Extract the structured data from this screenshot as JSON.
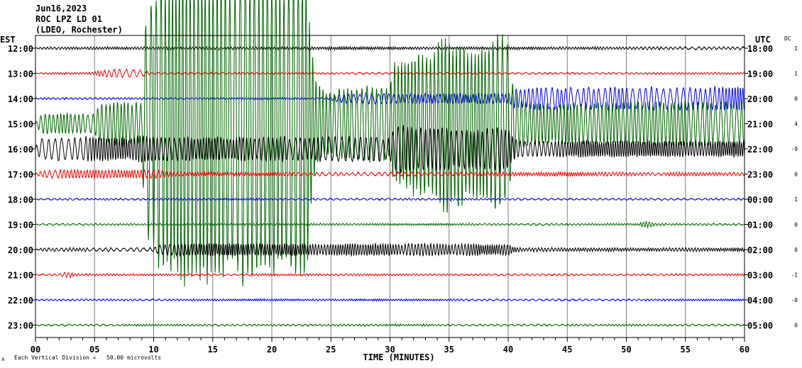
{
  "header": {
    "date": "Jun16,2023",
    "station": "ROC LPZ LD 01",
    "network": "(LDEO, Rochester)"
  },
  "chart_data": {
    "type": "line",
    "title": "Jun16,2023 ROC LPZ LD 01 (LDEO, Rochester)",
    "xlabel": "TIME (MINUTES)",
    "left_axis_title": "EST",
    "right_axis_title": "UTC",
    "dc_title": "DC",
    "xlim": [
      0,
      60
    ],
    "x_ticks": [
      "00",
      "05",
      "10",
      "15",
      "20",
      "25",
      "30",
      "35",
      "40",
      "45",
      "50",
      "55",
      "60"
    ],
    "grid": "vertical every 5 minutes",
    "scale_note": "Each Vertical Division =   50.00 microvolts",
    "scale_mark": "ʌ",
    "colors": {
      "black": "#000000",
      "red": "#ff0000",
      "blue": "#0000ff",
      "green": "#006400",
      "grid": "#808080"
    },
    "rows": [
      {
        "est": "12:00",
        "utc": "18:00",
        "dc": "1",
        "color": "#000000",
        "envelope_uV": [
          [
            0,
            60,
            3
          ]
        ]
      },
      {
        "est": "13:00",
        "utc": "19:00",
        "dc": "1",
        "color": "#ff0000",
        "envelope_uV": [
          [
            0,
            5,
            2
          ],
          [
            5,
            9,
            10
          ],
          [
            9,
            60,
            2
          ]
        ]
      },
      {
        "est": "14:00",
        "utc": "20:00",
        "dc": "0",
        "color": "#0000ff",
        "envelope_uV": [
          [
            0,
            25,
            2
          ],
          [
            25,
            40,
            12
          ],
          [
            40,
            60,
            28
          ]
        ]
      },
      {
        "est": "15:00",
        "utc": "21:00",
        "dc": "4",
        "color": "#006400",
        "envelope_uV": [
          [
            0,
            5,
            25
          ],
          [
            5,
            9,
            55
          ],
          [
            9,
            23,
            380
          ],
          [
            23,
            30,
            90
          ],
          [
            30,
            34,
            180
          ],
          [
            34,
            40,
            220
          ],
          [
            40,
            60,
            55
          ]
        ]
      },
      {
        "est": "16:00",
        "utc": "22:00",
        "dc": "-9",
        "color": "#000000",
        "envelope_uV": [
          [
            0,
            30,
            30
          ],
          [
            30,
            40,
            55
          ],
          [
            40,
            60,
            20
          ]
        ]
      },
      {
        "est": "17:00",
        "utc": "23:00",
        "dc": "0",
        "color": "#ff0000",
        "envelope_uV": [
          [
            0,
            11,
            10
          ],
          [
            11,
            60,
            4
          ]
        ]
      },
      {
        "est": "18:00",
        "utc": "00:00",
        "dc": "1",
        "color": "#0000ff",
        "envelope_uV": [
          [
            0,
            60,
            2
          ]
        ]
      },
      {
        "est": "19:00",
        "utc": "01:00",
        "dc": "0",
        "color": "#006400",
        "envelope_uV": [
          [
            0,
            51,
            2
          ],
          [
            51,
            52,
            7
          ],
          [
            52,
            60,
            2
          ]
        ]
      },
      {
        "est": "20:00",
        "utc": "02:00",
        "dc": "0",
        "color": "#000000",
        "envelope_uV": [
          [
            0,
            10,
            4
          ],
          [
            10,
            40,
            14
          ],
          [
            40,
            60,
            4
          ]
        ]
      },
      {
        "est": "21:00",
        "utc": "03:00",
        "dc": "-1",
        "color": "#ff0000",
        "envelope_uV": [
          [
            0,
            2,
            2
          ],
          [
            2,
            3,
            7
          ],
          [
            3,
            60,
            2
          ]
        ]
      },
      {
        "est": "22:00",
        "utc": "04:00",
        "dc": "-0",
        "color": "#0000ff",
        "envelope_uV": [
          [
            0,
            60,
            2
          ]
        ]
      },
      {
        "est": "23:00",
        "utc": "05:00",
        "dc": "0",
        "color": "#006400",
        "envelope_uV": [
          [
            0,
            60,
            2
          ]
        ]
      }
    ]
  }
}
